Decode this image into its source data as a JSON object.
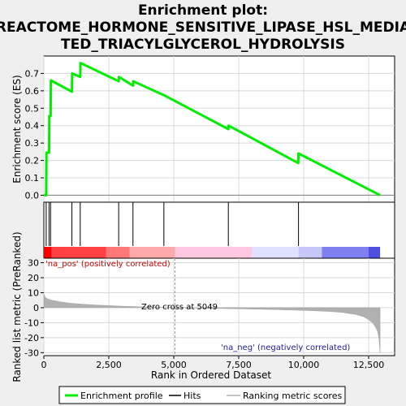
{
  "chart_data": [
    {
      "type": "line",
      "title": "Enrichment plot: REACTOME_HORMONE_SENSITIVE_LIPASE_HSL_MEDIATED_TRIACYLGLYCEROL_HYDROLYSIS",
      "title_lines": [
        "Enrichment plot:",
        "REACTOME_HORMONE_SENSITIVE_LIPASE_HSL_MEDIA",
        "TED_TRIACYLGLYCEROL_HYDROLYSIS"
      ],
      "ylabel": "Enrichment score (ES)",
      "xlim": [
        0,
        13500
      ],
      "ylim": [
        -0.04,
        0.8
      ],
      "yticks": [
        0.0,
        0.1,
        0.2,
        0.3,
        0.4,
        0.5,
        0.6,
        0.7
      ],
      "ytick_labels": [
        "0.0",
        "0.1",
        "0.2",
        "0.3",
        "0.4",
        "0.5",
        "0.6",
        "0.7"
      ],
      "grid": true,
      "series": [
        {
          "name": "Enrichment profile",
          "color": "#00ee00",
          "x": [
            0,
            90,
            100,
            200,
            210,
            260,
            270,
            1080,
            1090,
            1400,
            1410,
            2880,
            2890,
            3430,
            3440,
            4620,
            7100,
            7110,
            9790,
            9800,
            12940
          ],
          "y": [
            0.0,
            0.0,
            0.245,
            0.245,
            0.455,
            0.455,
            0.66,
            0.595,
            0.7,
            0.68,
            0.76,
            0.655,
            0.68,
            0.63,
            0.655,
            0.575,
            0.38,
            0.4,
            0.185,
            0.24,
            0.0
          ]
        }
      ],
      "hits": [
        90,
        200,
        260,
        1080,
        1400,
        2880,
        3430,
        4620,
        7100,
        9800
      ]
    },
    {
      "type": "heatmap",
      "description": "rank color bar",
      "colors": [
        "#ff0000",
        "#ff4040",
        "#ff7777",
        "#ffaaaa",
        "#ffc8e0",
        "#e0e0ff",
        "#c8c8f8",
        "#8080f0",
        "#5050e0",
        "#1010c0"
      ],
      "breaks": [
        0,
        300,
        2400,
        3300,
        5050,
        8000,
        9800,
        10700,
        12500,
        12940
      ]
    },
    {
      "type": "area",
      "ylabel": "Ranked list metric (PreRanked)",
      "xlabel": "Rank in Ordered Dataset",
      "xlim": [
        0,
        13500
      ],
      "ylim": [
        -32,
        33
      ],
      "yticks": [
        -30,
        -20,
        -10,
        0,
        10,
        20,
        30
      ],
      "ytick_labels": [
        "-30",
        "-20",
        "-10",
        "0",
        "10",
        "20",
        "30"
      ],
      "xticks": [
        0,
        2500,
        5000,
        7500,
        10000,
        12500
      ],
      "xtick_labels": [
        "0",
        "2,500",
        "5,000",
        "7,500",
        "10,000",
        "12,500"
      ],
      "zero_cross": 5049,
      "fill_color": "#b0b0b0",
      "x": [
        0,
        50,
        150,
        300,
        600,
        1000,
        1500,
        2000,
        3000,
        4000,
        5049,
        6000,
        7000,
        8000,
        9000,
        10000,
        11000,
        11500,
        12000,
        12300,
        12500,
        12650,
        12750,
        12850,
        12900,
        12940
      ],
      "y": [
        9,
        7,
        5.8,
        5,
        4,
        3,
        2.3,
        1.8,
        1.0,
        0.4,
        0,
        -0.3,
        -0.6,
        -0.9,
        -1.3,
        -1.8,
        -2.5,
        -3.2,
        -4.5,
        -6,
        -8,
        -10,
        -12.5,
        -16,
        -21,
        -30
      ],
      "annotations": {
        "pos": "'na_pos' (positively correlated)",
        "neg": "'na_neg' (negatively correlated)",
        "zero": "Zero cross at 5049"
      }
    }
  ],
  "legend": {
    "items": [
      {
        "label": "Enrichment profile",
        "color": "#00ee00"
      },
      {
        "label": "Hits",
        "color": "#000000"
      },
      {
        "label": "Ranking metric scores",
        "color": "#b0b0b0"
      }
    ]
  }
}
